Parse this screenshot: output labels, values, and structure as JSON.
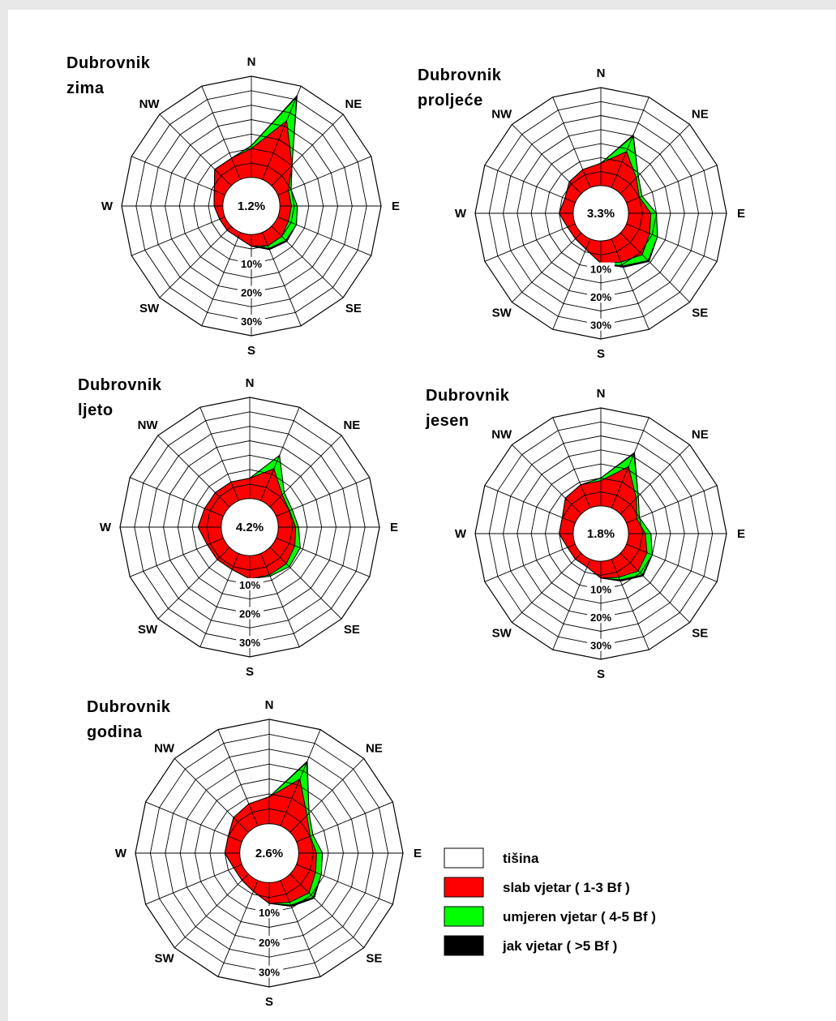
{
  "chart_data": [
    {
      "type": "wind-rose",
      "title_lines": [
        "Dubrovnik",
        "zima"
      ],
      "calm": "1.2%",
      "directions": [
        "N",
        "NNE",
        "NE",
        "ENE",
        "E",
        "ESE",
        "SE",
        "SSE",
        "S",
        "SSW",
        "SW",
        "WSW",
        "W",
        "WNW",
        "NW",
        "NNW"
      ],
      "direction_labels": [
        "N",
        "NE",
        "E",
        "SE",
        "S",
        "SW",
        "W",
        "NW"
      ],
      "ring_labels": [
        "10%",
        "20%",
        "30%"
      ],
      "r_max": 35,
      "series": [
        {
          "name": "slab vjetar ( 1-3 Bf )",
          "values": [
            10.0,
            22.0,
            10.0,
            4.0,
            4.0,
            4.0,
            5.0,
            5.0,
            4.0,
            2.0,
            2.0,
            2.0,
            3.0,
            4.0,
            8.0,
            8.0
          ]
        },
        {
          "name": "umjeren vjetar ( 4-5 Bf )",
          "values": [
            11.0,
            31.0,
            10.0,
            5.0,
            6.0,
            7.0,
            7.0,
            6.0,
            4.0,
            2.0,
            2.0,
            2.0,
            3.0,
            4.0,
            8.0,
            8.0
          ]
        },
        {
          "name": "jak vjetar ( >5 Bf )",
          "values": [
            11.0,
            31.5,
            10.0,
            5.0,
            6.0,
            7.0,
            7.5,
            6.5,
            4.0,
            2.0,
            2.0,
            2.0,
            3.0,
            4.0,
            8.0,
            8.0
          ]
        }
      ]
    },
    {
      "type": "wind-rose",
      "title_lines": [
        "Dubrovnik",
        "proljeće"
      ],
      "calm": "3.3%",
      "directions": [
        "N",
        "NNE",
        "NE",
        "ENE",
        "E",
        "ESE",
        "SE",
        "SSE",
        "S",
        "SSW",
        "SW",
        "WSW",
        "W",
        "WNW",
        "NW",
        "NNW"
      ],
      "direction_labels": [
        "N",
        "NE",
        "E",
        "SE",
        "S",
        "SW",
        "W",
        "NW"
      ],
      "ring_labels": [
        "10%",
        "20%",
        "30%"
      ],
      "r_max": 35,
      "series": [
        {
          "name": "slab vjetar ( 1-3 Bf )",
          "values": [
            8.0,
            14.0,
            8.0,
            5.0,
            8.0,
            9.0,
            11.0,
            9.0,
            8.0,
            4.0,
            3.0,
            3.0,
            5.0,
            4.0,
            6.0,
            7.0
          ]
        },
        {
          "name": "umjeren vjetar ( 4-5 Bf )",
          "values": [
            8.0,
            20.0,
            9.0,
            6.0,
            10.0,
            12.0,
            14.0,
            10.5,
            8.0,
            4.0,
            3.0,
            3.0,
            5.0,
            4.0,
            6.0,
            7.0
          ]
        },
        {
          "name": "jak vjetar ( >5 Bf )",
          "values": [
            8.0,
            20.5,
            9.0,
            6.0,
            10.0,
            12.0,
            14.5,
            11.0,
            8.0,
            4.0,
            3.0,
            3.0,
            5.0,
            4.0,
            6.0,
            7.0
          ]
        }
      ]
    },
    {
      "type": "wind-rose",
      "title_lines": [
        "Dubrovnik",
        "ljeto"
      ],
      "calm": "4.2%",
      "directions": [
        "N",
        "NNE",
        "NE",
        "ENE",
        "E",
        "ESE",
        "SE",
        "SSE",
        "S",
        "SSW",
        "SW",
        "WSW",
        "W",
        "WNW",
        "NW",
        "NNW"
      ],
      "direction_labels": [
        "N",
        "NE",
        "E",
        "SE",
        "S",
        "SW",
        "W",
        "NW"
      ],
      "ring_labels": [
        "10%",
        "20%",
        "30%"
      ],
      "r_max": 35,
      "series": [
        {
          "name": "slab vjetar ( 1-3 Bf )",
          "values": [
            7.0,
            12.0,
            6.0,
            5.0,
            6.0,
            7.0,
            8.0,
            8.0,
            8.0,
            6.0,
            6.0,
            6.0,
            8.0,
            7.0,
            7.0,
            7.0
          ]
        },
        {
          "name": "umjeren vjetar ( 4-5 Bf )",
          "values": [
            7.0,
            17.0,
            7.0,
            6.0,
            7.0,
            9.0,
            9.5,
            8.5,
            8.0,
            6.0,
            6.0,
            6.0,
            8.0,
            7.0,
            7.0,
            7.0
          ]
        },
        {
          "name": "jak vjetar ( >5 Bf )",
          "values": [
            7.0,
            17.0,
            7.0,
            6.0,
            7.0,
            9.0,
            9.5,
            8.5,
            8.0,
            6.0,
            6.0,
            6.0,
            8.0,
            7.0,
            7.0,
            7.0
          ]
        }
      ]
    },
    {
      "type": "wind-rose",
      "title_lines": [
        "Dubrovnik",
        "jesen"
      ],
      "calm": "1.8%",
      "directions": [
        "N",
        "NNE",
        "NE",
        "ENE",
        "E",
        "ESE",
        "SE",
        "SSE",
        "S",
        "SSW",
        "SW",
        "WSW",
        "W",
        "WNW",
        "NW",
        "NNW"
      ],
      "direction_labels": [
        "N",
        "NE",
        "E",
        "SE",
        "S",
        "SW",
        "W",
        "NW"
      ],
      "ring_labels": [
        "10%",
        "20%",
        "30%"
      ],
      "r_max": 35,
      "series": [
        {
          "name": "slab vjetar ( 1-3 Bf )",
          "values": [
            9.0,
            16.0,
            8.0,
            4.0,
            6.0,
            8.0,
            9.0,
            7.0,
            6.0,
            3.0,
            3.0,
            3.0,
            5.0,
            5.0,
            8.0,
            9.0
          ]
        },
        {
          "name": "umjeren vjetar ( 4-5 Bf )",
          "values": [
            10.0,
            21.0,
            9.0,
            5.0,
            8.0,
            10.0,
            11.0,
            8.0,
            6.0,
            3.0,
            3.0,
            3.0,
            5.0,
            5.0,
            8.0,
            9.0
          ]
        },
        {
          "name": "jak vjetar ( >5 Bf )",
          "values": [
            10.0,
            21.5,
            9.0,
            5.0,
            8.0,
            10.0,
            11.5,
            8.5,
            6.0,
            3.0,
            3.0,
            3.0,
            5.0,
            5.0,
            8.0,
            9.0
          ]
        }
      ]
    },
    {
      "type": "wind-rose",
      "title_lines": [
        "Dubrovnik",
        "godina"
      ],
      "calm": "2.6%",
      "directions": [
        "N",
        "NNE",
        "NE",
        "ENE",
        "E",
        "ESE",
        "SE",
        "SSE",
        "S",
        "SSW",
        "SW",
        "WSW",
        "W",
        "WNW",
        "NW",
        "NNW"
      ],
      "direction_labels": [
        "N",
        "NE",
        "E",
        "SE",
        "S",
        "SW",
        "W",
        "NW"
      ],
      "ring_labels": [
        "10%",
        "20%",
        "30%"
      ],
      "r_max": 35,
      "series": [
        {
          "name": "slab vjetar ( 1-3 Bf )",
          "values": [
            9.0,
            17.0,
            8.0,
            5.0,
            6.0,
            7.0,
            9.0,
            8.0,
            7.0,
            4.0,
            3.0,
            3.0,
            5.0,
            5.0,
            7.0,
            8.0
          ]
        },
        {
          "name": "umjeren vjetar ( 4-5 Bf )",
          "values": [
            9.0,
            23.0,
            9.0,
            6.0,
            8.0,
            9.0,
            11.0,
            9.0,
            7.0,
            4.0,
            3.0,
            3.0,
            5.0,
            5.0,
            7.0,
            8.0
          ]
        },
        {
          "name": "jak vjetar ( >5 Bf )",
          "values": [
            9.0,
            23.5,
            9.0,
            6.0,
            8.0,
            9.0,
            11.5,
            9.5,
            7.0,
            4.0,
            3.0,
            3.0,
            5.0,
            5.0,
            7.0,
            8.0
          ]
        }
      ]
    }
  ],
  "legend": {
    "items": [
      {
        "label": "tišina",
        "color": "#ffffff"
      },
      {
        "label": "slab vjetar ( 1-3 Bf )",
        "color": "#ff0000"
      },
      {
        "label": "umjeren vjetar ( 4-5 Bf )",
        "color": "#00ff00"
      },
      {
        "label": "jak vjetar ( >5 Bf )",
        "color": "#000000"
      }
    ]
  },
  "colors": {
    "slab": "#ff0000",
    "umjeren": "#00ff00",
    "jak": "#000000",
    "grid": "#000000",
    "calm_fill": "#ffffff"
  }
}
